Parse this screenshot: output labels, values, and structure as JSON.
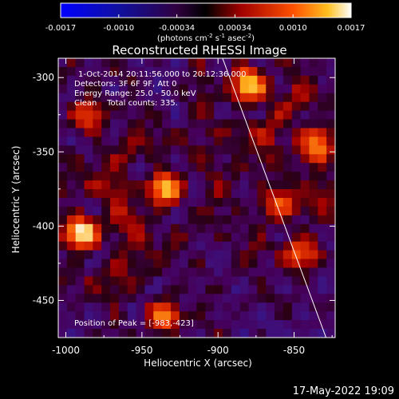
{
  "chart_data": {
    "type": "heatmap",
    "title": "Reconstructed RHESSI Image",
    "xlabel": "Heliocentric X (arcsec)",
    "ylabel": "Heliocentric Y (arcsec)",
    "xlim": [
      -1005,
      -823
    ],
    "ylim": [
      -475,
      -287
    ],
    "x_ticks": [
      -1000,
      -950,
      -900,
      -850
    ],
    "y_ticks": [
      -300,
      -350,
      -400,
      -450
    ],
    "colorbar": {
      "range": [
        -0.0017,
        0.0017
      ],
      "ticks": [
        "-0.0017",
        "-0.0010",
        "-0.00034",
        "0.00034",
        "0.0010",
        "0.0017"
      ],
      "label_prefix": "(photons cm",
      "label_exp1": "-2",
      "label_mid": " s",
      "label_exp2": "-1",
      "label_mid2": " asec",
      "label_exp3": "-2",
      "label_suffix": ")"
    },
    "grid_shape": [
      32,
      32
    ],
    "sources": [
      {
        "x": -880,
        "y": -305,
        "level": 0.95
      },
      {
        "x": -835,
        "y": -345,
        "level": 0.75
      },
      {
        "x": -935,
        "y": -375,
        "level": 0.85
      },
      {
        "x": -990,
        "y": -405,
        "level": 1.0
      },
      {
        "x": -985,
        "y": -325,
        "level": 0.6
      },
      {
        "x": -845,
        "y": -420,
        "level": 0.55
      },
      {
        "x": -935,
        "y": -460,
        "level": 0.7
      },
      {
        "x": -860,
        "y": -385,
        "level": 0.45
      }
    ],
    "limb_line": {
      "x1": -897,
      "y1": -287,
      "x2": -829,
      "y2": -475
    },
    "annotations": {
      "line1": "1-Oct-2014 20:11:56.000 to 20:12:36.000",
      "line2": "Detectors: 3F 6F 9F, Att 0",
      "line3": "Energy Range: 25.0 - 50.0 keV",
      "line4": "Clean    Total counts: 335.",
      "peak": "Position of Peak = [-983,-423]"
    }
  },
  "footer": {
    "date": "17-May-2022 19:09"
  }
}
